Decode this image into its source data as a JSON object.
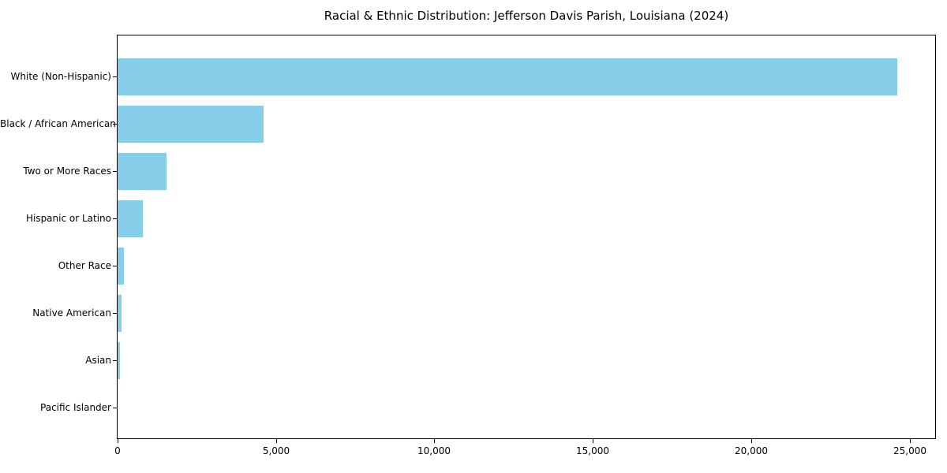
{
  "chart_data": {
    "type": "bar",
    "orientation": "horizontal",
    "title": "Racial & Ethnic Distribution: Jefferson Davis Parish, Louisiana (2024)",
    "categories": [
      "White (Non-Hispanic)",
      "Black / African American",
      "Two or More Races",
      "Hispanic or Latino",
      "Other Race",
      "Native American",
      "Asian",
      "Pacific Islander"
    ],
    "values": [
      24600,
      4600,
      1550,
      790,
      210,
      120,
      80,
      0
    ],
    "xlabel": "",
    "ylabel": "",
    "xlim": [
      0,
      25830
    ],
    "x_ticks": [
      0,
      5000,
      10000,
      15000,
      20000,
      25000
    ],
    "x_tick_labels": [
      "0",
      "5,000",
      "10,000",
      "15,000",
      "20,000",
      "25,000"
    ],
    "bar_color": "#87CEEB",
    "grid": false,
    "legend": "none",
    "frame": "full-box"
  }
}
